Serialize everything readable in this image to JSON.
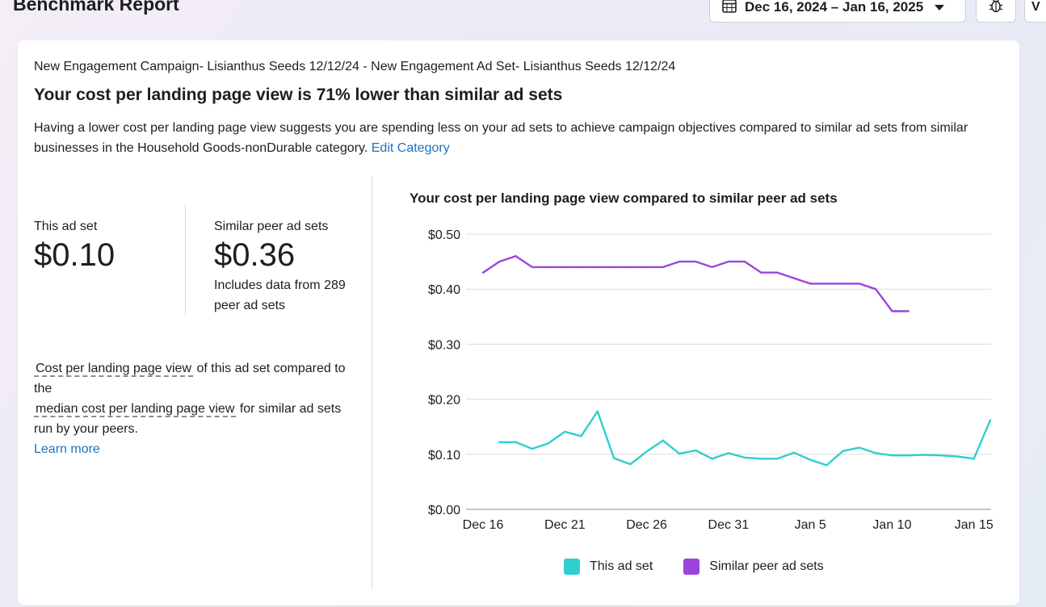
{
  "header": {
    "title": "Benchmark Report",
    "date_range": "Dec 16, 2024 – Jan 16, 2025",
    "more_label": "V"
  },
  "card": {
    "breadcrumb": "New Engagement Campaign- Lisianthus Seeds 12/12/24 - New Engagement Ad Set- Lisianthus Seeds 12/12/24",
    "headline": "Your cost per landing page view is 71% lower than similar ad sets",
    "description": "Having a lower cost per landing page view suggests you are spending less on your ad sets to achieve campaign objectives compared to similar ad sets from similar businesses in the Household Goods-nonDurable category.",
    "edit_link": "Edit Category",
    "this_ad_set": {
      "label": "This ad set",
      "value": "$0.10"
    },
    "peer": {
      "label": "Similar peer ad sets",
      "value": "$0.36",
      "note": "Includes data from 289 peer ad sets"
    },
    "explain": {
      "term1": "Cost per landing page view",
      "text1": "of this ad set compared to the",
      "term2": "median cost per landing page view",
      "text2": "for similar ad sets run by your peers.",
      "learn_more": "Learn more"
    }
  },
  "chart_data": {
    "type": "line",
    "title": "Your cost per landing page view compared to similar peer ad sets",
    "x_ticks": [
      "Dec 16",
      "Dec 21",
      "Dec 26",
      "Dec 31",
      "Jan 5",
      "Jan 10",
      "Jan 15"
    ],
    "y_ticks": [
      "$0.50",
      "$0.40",
      "$0.30",
      "$0.20",
      "$0.10",
      "$0.00"
    ],
    "ylim": [
      0,
      0.5
    ],
    "x_start": "2024-12-16",
    "x_days": 31,
    "series": [
      {
        "name": "This ad set",
        "color": "#2ecfcf",
        "start_day": 1,
        "values": [
          0.122,
          0.122,
          0.11,
          0.12,
          0.141,
          0.133,
          0.178,
          0.093,
          0.082,
          0.105,
          0.125,
          0.101,
          0.107,
          0.092,
          0.102,
          0.094,
          0.092,
          0.092,
          0.103,
          0.09,
          0.08,
          0.106,
          0.112,
          0.102,
          0.098,
          0.098,
          0.099,
          0.098,
          0.096,
          0.092,
          0.162
        ]
      },
      {
        "name": "Similar peer ad sets",
        "color": "#9b44e0",
        "start_day": 0,
        "values": [
          0.43,
          0.45,
          0.46,
          0.44,
          0.44,
          0.44,
          0.44,
          0.44,
          0.44,
          0.44,
          0.44,
          0.44,
          0.45,
          0.45,
          0.44,
          0.45,
          0.45,
          0.43,
          0.43,
          0.42,
          0.41,
          0.41,
          0.41,
          0.41,
          0.4,
          0.36,
          0.36
        ]
      }
    ],
    "legend": "bottom",
    "grid": true
  }
}
